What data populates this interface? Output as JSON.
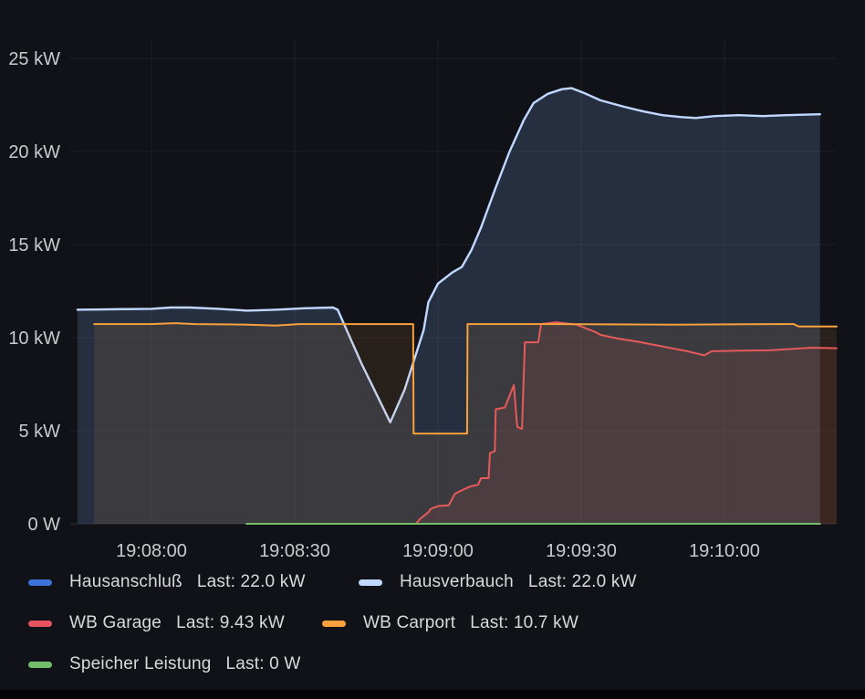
{
  "chart_data": {
    "type": "line",
    "title": "",
    "grid": true,
    "legend_position": "bottom",
    "x_axis": {
      "tick_labels": [
        "19:08:00",
        "19:08:30",
        "19:09:00",
        "19:09:30",
        "19:10:00"
      ],
      "tick_seconds": [
        0,
        30,
        60,
        90,
        120
      ]
    },
    "y_axis": {
      "tick_labels": [
        "0 W",
        "5 kW",
        "10 kW",
        "15 kW",
        "20 kW",
        "25 kW"
      ],
      "tick_values": [
        0,
        5,
        10,
        15,
        20,
        25
      ],
      "ylim": [
        0,
        26
      ]
    },
    "series": [
      {
        "name": "Hausanschluß",
        "last_label": "Last: 22.0 kW",
        "color": "#3D71D9",
        "points": [
          [
            -15.5,
            11.5
          ],
          [
            0,
            11.55
          ],
          [
            4,
            11.62
          ],
          [
            8,
            11.62
          ],
          [
            14,
            11.55
          ],
          [
            20,
            11.45
          ],
          [
            26,
            11.5
          ],
          [
            32,
            11.58
          ],
          [
            38,
            11.62
          ],
          [
            39,
            11.5
          ],
          [
            44,
            8.6
          ],
          [
            50,
            5.45
          ],
          [
            53,
            7.2
          ],
          [
            57,
            10.4
          ],
          [
            58,
            11.9
          ],
          [
            60,
            12.9
          ],
          [
            63,
            13.5
          ],
          [
            65,
            13.8
          ],
          [
            67,
            14.7
          ],
          [
            69,
            15.9
          ],
          [
            72,
            18.0
          ],
          [
            75,
            20.0
          ],
          [
            78,
            21.7
          ],
          [
            80,
            22.6
          ],
          [
            83,
            23.1
          ],
          [
            86,
            23.35
          ],
          [
            88,
            23.4
          ],
          [
            91,
            23.1
          ],
          [
            94,
            22.75
          ],
          [
            99,
            22.4
          ],
          [
            103,
            22.15
          ],
          [
            107,
            21.95
          ],
          [
            111,
            21.85
          ],
          [
            114,
            21.8
          ],
          [
            118,
            21.9
          ],
          [
            123,
            21.95
          ],
          [
            128,
            21.9
          ],
          [
            133,
            21.95
          ],
          [
            140,
            22.0
          ]
        ]
      },
      {
        "name": "Hausverbauch",
        "last_label": "Last: 22.0 kW",
        "color": "#C0D8FF",
        "points": [
          [
            -15.5,
            11.5
          ],
          [
            0,
            11.55
          ],
          [
            4,
            11.62
          ],
          [
            8,
            11.62
          ],
          [
            14,
            11.55
          ],
          [
            20,
            11.45
          ],
          [
            26,
            11.5
          ],
          [
            32,
            11.58
          ],
          [
            38,
            11.62
          ],
          [
            39,
            11.5
          ],
          [
            44,
            8.6
          ],
          [
            50,
            5.45
          ],
          [
            53,
            7.2
          ],
          [
            57,
            10.4
          ],
          [
            58,
            11.9
          ],
          [
            60,
            12.9
          ],
          [
            63,
            13.5
          ],
          [
            65,
            13.8
          ],
          [
            67,
            14.7
          ],
          [
            69,
            15.9
          ],
          [
            72,
            18.0
          ],
          [
            75,
            20.0
          ],
          [
            78,
            21.7
          ],
          [
            80,
            22.6
          ],
          [
            83,
            23.1
          ],
          [
            86,
            23.35
          ],
          [
            88,
            23.4
          ],
          [
            91,
            23.1
          ],
          [
            94,
            22.75
          ],
          [
            99,
            22.4
          ],
          [
            103,
            22.15
          ],
          [
            107,
            21.95
          ],
          [
            111,
            21.85
          ],
          [
            114,
            21.8
          ],
          [
            118,
            21.9
          ],
          [
            123,
            21.95
          ],
          [
            128,
            21.9
          ],
          [
            133,
            21.95
          ],
          [
            140,
            22.0
          ]
        ]
      },
      {
        "name": "WB Garage",
        "last_label": "Last: 9.43 kW",
        "color": "#E5545E",
        "points": [
          [
            50,
            0
          ],
          [
            55.4,
            0
          ],
          [
            56.2,
            0.25
          ],
          [
            57.4,
            0.5
          ],
          [
            58.1,
            0.65
          ],
          [
            58.5,
            0.8
          ],
          [
            60,
            0.95
          ],
          [
            62.3,
            1.0
          ],
          [
            63.5,
            1.6
          ],
          [
            64.2,
            1.7
          ],
          [
            66.7,
            2.0
          ],
          [
            68.4,
            2.1
          ],
          [
            69,
            2.45
          ],
          [
            70.6,
            2.45
          ],
          [
            70.9,
            3.8
          ],
          [
            71.9,
            3.9
          ],
          [
            72.1,
            6.15
          ],
          [
            74,
            6.25
          ],
          [
            75.9,
            7.45
          ],
          [
            76.6,
            5.2
          ],
          [
            77.6,
            5.1
          ],
          [
            78.2,
            9.75
          ],
          [
            81,
            9.75
          ],
          [
            81.6,
            10.73
          ],
          [
            84.8,
            10.83
          ],
          [
            89,
            10.7
          ],
          [
            93,
            10.3
          ],
          [
            94,
            10.15
          ],
          [
            97.6,
            9.95
          ],
          [
            101.5,
            9.8
          ],
          [
            106.4,
            9.56
          ],
          [
            112.2,
            9.27
          ],
          [
            115.8,
            9.05
          ],
          [
            117.3,
            9.27
          ],
          [
            123.6,
            9.3
          ],
          [
            129.4,
            9.32
          ],
          [
            138.4,
            9.46
          ],
          [
            143.5,
            9.43
          ]
        ]
      },
      {
        "name": "WB Carport",
        "last_label": "Last: 10.7 kW",
        "color": "#F9A13C",
        "points": [
          [
            -12,
            10.73
          ],
          [
            0,
            10.73
          ],
          [
            5,
            10.78
          ],
          [
            9,
            10.73
          ],
          [
            20,
            10.7
          ],
          [
            26,
            10.65
          ],
          [
            31,
            10.73
          ],
          [
            44,
            10.73
          ],
          [
            54.8,
            10.73
          ],
          [
            54.9,
            4.85
          ],
          [
            66.1,
            4.85
          ],
          [
            66.2,
            10.73
          ],
          [
            85,
            10.73
          ],
          [
            110,
            10.7
          ],
          [
            125,
            10.72
          ],
          [
            133,
            10.73
          ],
          [
            134.5,
            10.73
          ],
          [
            135.5,
            10.6
          ],
          [
            143.5,
            10.6
          ]
        ]
      },
      {
        "name": "Speicher Leistung",
        "last_label": "Last: 0 W",
        "color": "#73BF69",
        "points": [
          [
            19.9,
            0
          ],
          [
            140,
            0
          ]
        ]
      }
    ]
  }
}
